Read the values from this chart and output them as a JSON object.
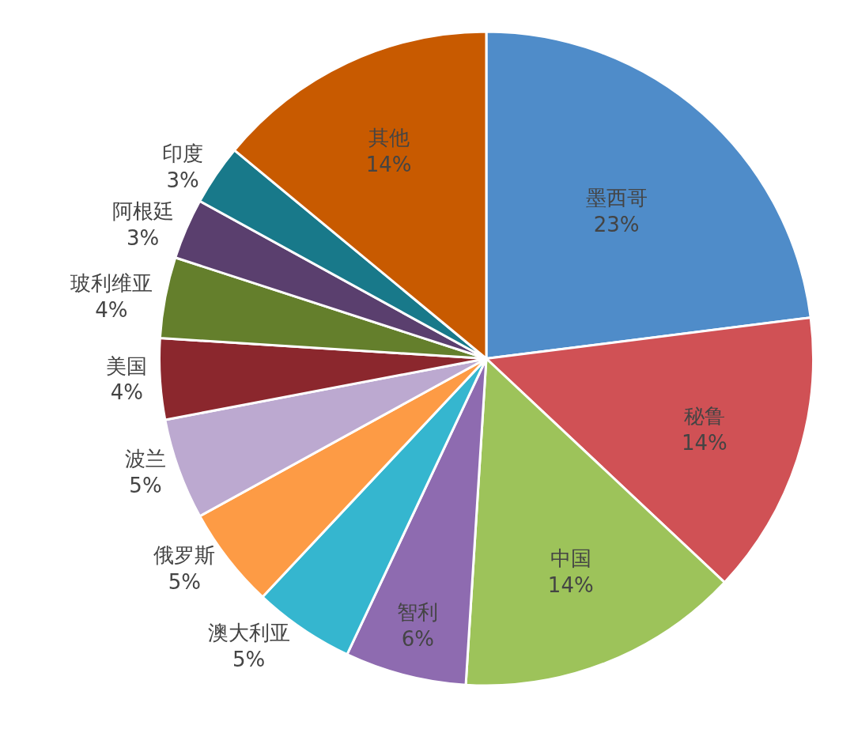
{
  "chart_data": {
    "type": "pie",
    "categories": [
      "墨西哥",
      "秘鲁",
      "中国",
      "智利",
      "澳大利亚",
      "俄罗斯",
      "波兰",
      "美国",
      "玻利维亚",
      "阿根廷",
      "印度",
      "其他"
    ],
    "values": [
      23,
      14,
      14,
      6,
      5,
      5,
      5,
      4,
      4,
      3,
      3,
      14
    ],
    "value_labels": [
      "23%",
      "14%",
      "14%",
      "6%",
      "5%",
      "5%",
      "5%",
      "4%",
      "4%",
      "3%",
      "3%",
      "14%"
    ],
    "colors": [
      "#4f8cc9",
      "#d05155",
      "#9dc35a",
      "#8e6bb0",
      "#35b6cf",
      "#fd9b45",
      "#bca9d0",
      "#8b272d",
      "#647f2c",
      "#5a3f6e",
      "#18798a",
      "#c85a00"
    ],
    "legend": false
  }
}
